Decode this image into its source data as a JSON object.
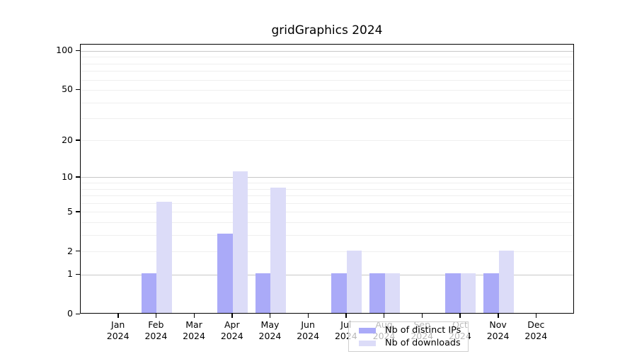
{
  "title": "gridGraphics 2024",
  "chart_data": {
    "type": "bar",
    "title": "gridGraphics 2024",
    "categories": [
      "Jan",
      "Feb",
      "Mar",
      "Apr",
      "May",
      "Jun",
      "Jul",
      "Aug",
      "Sep",
      "Oct",
      "Nov",
      "Dec"
    ],
    "x_tick_year": "2024",
    "series": [
      {
        "name": "Nb of distinct IPs",
        "color": "#aaaaf8",
        "values": [
          0,
          1,
          0,
          3,
          1,
          0,
          1,
          1,
          0,
          1,
          1,
          0
        ]
      },
      {
        "name": "Nb of downloads",
        "color": "#dcdcf8",
        "values": [
          0,
          6,
          0,
          11,
          8,
          0,
          2,
          1,
          0,
          1,
          2,
          0
        ]
      }
    ],
    "y_axis": {
      "scale": "log1p",
      "tick_values": [
        0,
        1,
        2,
        5,
        10,
        20,
        50,
        100
      ],
      "major_gridlines": [
        1,
        10,
        100
      ],
      "minor_gridlines": [
        2,
        3,
        4,
        5,
        6,
        7,
        8,
        9,
        20,
        30,
        40,
        50,
        60,
        70,
        80,
        90
      ],
      "range": [
        0,
        113
      ]
    },
    "legend": {
      "entries": [
        "Nb of distinct IPs",
        "Nb of downloads"
      ],
      "position": "inside-bottom-center"
    },
    "colors": {
      "bar_distinct_ips": "#aaaaf8",
      "bar_downloads": "#dcdcf8",
      "major_grid": "#c7c7c7",
      "minor_grid": "#efefef",
      "axis": "#000000",
      "text": "#000000"
    },
    "grid": true
  }
}
